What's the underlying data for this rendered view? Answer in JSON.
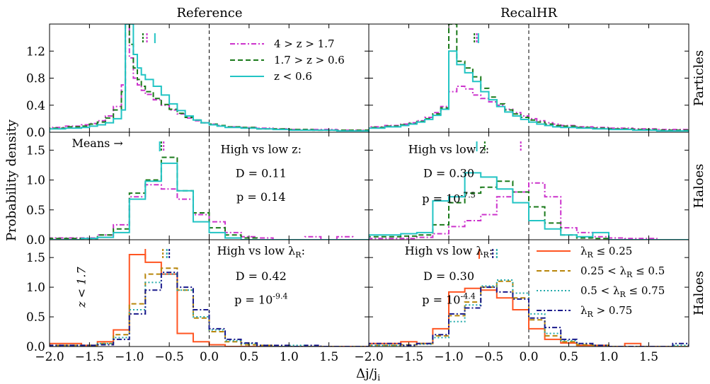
{
  "figure": {
    "column_titles": [
      "Reference",
      "RecalHR"
    ],
    "row_labels": [
      "Particles",
      "Haloes",
      "Haloes"
    ],
    "ylabel": "Probability density",
    "xlabel": "Δj/j",
    "xlabel_sub": "i"
  },
  "chart_data": [
    {
      "type": "histogram",
      "row": 0,
      "col": 0,
      "title": "Reference",
      "side_label": "",
      "xlim": [
        -2.0,
        2.0
      ],
      "ylim": [
        0,
        1.6
      ],
      "yticks": [
        "0.0",
        "0.4",
        "0.8",
        "1.2"
      ],
      "bin_edges": [
        -2.0,
        -1.8,
        -1.6,
        -1.5,
        -1.4,
        -1.3,
        -1.2,
        -1.1,
        -1.05,
        -1.0,
        -0.95,
        -0.9,
        -0.85,
        -0.8,
        -0.7,
        -0.6,
        -0.5,
        -0.4,
        -0.3,
        -0.2,
        -0.1,
        0.0,
        0.1,
        0.2,
        0.4,
        0.6,
        0.8,
        1.0,
        1.3,
        1.6,
        2.0
      ],
      "series": [
        {
          "name": "4 > z > 1.7",
          "color": "#cc33cc",
          "dash": "dashdot",
          "values": [
            0.07,
            0.09,
            0.11,
            0.13,
            0.17,
            0.24,
            0.38,
            0.7,
            1.6,
            1.1,
            0.8,
            0.7,
            0.62,
            0.56,
            0.48,
            0.4,
            0.33,
            0.27,
            0.21,
            0.17,
            0.14,
            0.12,
            0.1,
            0.08,
            0.07,
            0.06,
            0.05,
            0.04,
            0.04,
            0.03
          ]
        },
        {
          "name": "1.7 > z > 0.6",
          "color": "#1a7a1a",
          "dash": "dashed",
          "values": [
            0.06,
            0.08,
            0.09,
            0.12,
            0.15,
            0.21,
            0.33,
            0.6,
            1.6,
            1.3,
            0.95,
            0.78,
            0.68,
            0.6,
            0.5,
            0.41,
            0.34,
            0.28,
            0.22,
            0.18,
            0.14,
            0.12,
            0.1,
            0.08,
            0.07,
            0.05,
            0.05,
            0.04,
            0.03,
            0.03
          ]
        },
        {
          "name": "z < 0.6",
          "color": "#22c4c4",
          "dash": "solid",
          "values": [
            0.05,
            0.06,
            0.07,
            0.09,
            0.11,
            0.14,
            0.2,
            0.33,
            1.6,
            1.6,
            1.15,
            0.95,
            0.85,
            0.78,
            0.68,
            0.55,
            0.42,
            0.32,
            0.24,
            0.18,
            0.14,
            0.11,
            0.09,
            0.07,
            0.06,
            0.05,
            0.04,
            0.03,
            0.03,
            0.02
          ]
        }
      ],
      "means": [
        -0.78,
        -0.83,
        -0.68
      ],
      "annotations": []
    },
    {
      "type": "histogram",
      "row": 0,
      "col": 1,
      "title": "RecalHR",
      "side_label": "Particles",
      "xlim": [
        -2.0,
        2.0
      ],
      "ylim": [
        0,
        1.6
      ],
      "yticks": [],
      "bin_edges": [
        -2.0,
        -1.8,
        -1.6,
        -1.5,
        -1.4,
        -1.3,
        -1.2,
        -1.1,
        -1.0,
        -0.9,
        -0.8,
        -0.7,
        -0.6,
        -0.5,
        -0.4,
        -0.3,
        -0.2,
        -0.1,
        0.0,
        0.1,
        0.2,
        0.3,
        0.4,
        0.6,
        0.8,
        1.0,
        1.3,
        1.6,
        2.0
      ],
      "series": [
        {
          "name": "4 > z > 1.7",
          "color": "#cc33cc",
          "dash": "dashdot",
          "values": [
            0.08,
            0.1,
            0.12,
            0.14,
            0.17,
            0.22,
            0.29,
            0.38,
            0.6,
            0.68,
            0.64,
            0.55,
            0.5,
            0.45,
            0.4,
            0.34,
            0.29,
            0.24,
            0.2,
            0.17,
            0.14,
            0.12,
            0.1,
            0.08,
            0.07,
            0.06,
            0.05,
            0.04
          ]
        },
        {
          "name": "1.7 > z > 0.6",
          "color": "#1a7a1a",
          "dash": "dashed",
          "values": [
            0.07,
            0.09,
            0.11,
            0.13,
            0.16,
            0.2,
            0.27,
            0.36,
            1.6,
            1.05,
            0.95,
            0.82,
            0.65,
            0.52,
            0.42,
            0.33,
            0.27,
            0.22,
            0.18,
            0.15,
            0.12,
            0.1,
            0.09,
            0.07,
            0.06,
            0.05,
            0.04,
            0.03
          ]
        },
        {
          "name": "z < 0.6",
          "color": "#22c4c4",
          "dash": "solid",
          "values": [
            0.06,
            0.08,
            0.1,
            0.12,
            0.15,
            0.19,
            0.25,
            0.34,
            1.2,
            1.0,
            0.88,
            0.75,
            0.6,
            0.48,
            0.38,
            0.3,
            0.24,
            0.19,
            0.15,
            0.12,
            0.1,
            0.08,
            0.07,
            0.06,
            0.05,
            0.04,
            0.03,
            0.02
          ]
        }
      ],
      "means": [
        -0.65,
        -0.68,
        -0.63
      ],
      "annotations": []
    },
    {
      "type": "histogram",
      "row": 1,
      "col": 0,
      "title": "",
      "side_label": "",
      "xlim": [
        -2.0,
        2.0
      ],
      "ylim": [
        0,
        1.8
      ],
      "yticks": [
        "0.0",
        "0.5",
        "1.0",
        "1.5"
      ],
      "bin_edges": [
        -2.0,
        -1.6,
        -1.4,
        -1.2,
        -1.0,
        -0.8,
        -0.6,
        -0.4,
        -0.2,
        0.0,
        0.2,
        0.4,
        0.6,
        0.8,
        1.0,
        1.2,
        1.4,
        1.6,
        1.8,
        2.0
      ],
      "series": [
        {
          "name": "4 > z > 1.7",
          "color": "#cc33cc",
          "dash": "dashdot",
          "values": [
            0.03,
            0.03,
            0.08,
            0.25,
            0.72,
            0.92,
            0.85,
            0.68,
            0.42,
            0.3,
            0.12,
            0.05,
            0.03,
            0.0,
            0.0,
            0.05,
            0.0,
            0.05,
            0.0
          ]
        },
        {
          "name": "1.7 > z > 0.6",
          "color": "#1a7a1a",
          "dash": "dashed",
          "values": [
            0.02,
            0.02,
            0.08,
            0.18,
            0.78,
            1.0,
            1.38,
            0.82,
            0.45,
            0.2,
            0.08,
            0.03,
            0.0,
            0.0,
            0.0,
            0.0,
            0.0,
            0.0,
            0.0
          ]
        },
        {
          "name": "z < 0.6",
          "color": "#22c4c4",
          "dash": "solid",
          "values": [
            0.0,
            0.02,
            0.04,
            0.12,
            0.68,
            0.98,
            1.28,
            0.82,
            0.3,
            0.12,
            0.03,
            0.0,
            0.0,
            0.0,
            0.0,
            0.0,
            0.0,
            0.0,
            0.0
          ]
        }
      ],
      "means": [
        -0.57,
        -0.6,
        -0.62
      ],
      "annotations": [
        {
          "text": "Means →",
          "x": -1.4,
          "y": 1.55
        },
        {
          "text": "High vs low z:",
          "x": 0.65,
          "y": 1.45
        },
        {
          "text": "D = 0.11",
          "x": 0.65,
          "y": 1.05
        },
        {
          "text": "p = 0.14",
          "x": 0.65,
          "y": 0.65
        }
      ]
    },
    {
      "type": "histogram",
      "row": 1,
      "col": 1,
      "title": "",
      "side_label": "Haloes",
      "xlim": [
        -2.0,
        2.0
      ],
      "ylim": [
        0,
        1.8
      ],
      "yticks": [],
      "bin_edges": [
        -2.0,
        -1.6,
        -1.4,
        -1.2,
        -1.0,
        -0.8,
        -0.6,
        -0.4,
        -0.2,
        0.0,
        0.2,
        0.4,
        0.6,
        0.8,
        1.0,
        1.2,
        1.4,
        1.6,
        1.8,
        2.0
      ],
      "series": [
        {
          "name": "4 > z > 1.7",
          "color": "#cc33cc",
          "dash": "dashdot",
          "values": [
            0.02,
            0.02,
            0.04,
            0.1,
            0.22,
            0.32,
            0.42,
            0.72,
            0.8,
            0.95,
            0.72,
            0.2,
            0.12,
            0.05,
            0.03,
            0.02,
            0.02,
            0.0,
            0.0
          ]
        },
        {
          "name": "1.7 > z > 0.6",
          "color": "#1a7a1a",
          "dash": "dashed",
          "values": [
            0.05,
            0.06,
            0.08,
            0.25,
            0.62,
            0.78,
            0.88,
            0.98,
            0.8,
            0.55,
            0.28,
            0.08,
            0.03,
            0.02,
            0.0,
            0.0,
            0.0,
            0.0,
            0.0
          ]
        },
        {
          "name": "z < 0.6",
          "color": "#22c4c4",
          "dash": "solid",
          "values": [
            0.08,
            0.1,
            0.12,
            0.65,
            0.72,
            1.12,
            1.05,
            0.85,
            0.62,
            0.32,
            0.18,
            0.08,
            0.05,
            0.12,
            0.0,
            0.0,
            0.0,
            0.0,
            0.0
          ]
        }
      ],
      "means": [
        -0.1,
        -0.55,
        -0.65
      ],
      "annotations": [
        {
          "text": "High vs low z:",
          "x": -1.0,
          "y": 1.45
        },
        {
          "text": "D = 0.30",
          "x": -1.0,
          "y": 1.05
        },
        {
          "text": "p = 10",
          "sup": "-7.5",
          "x": -1.0,
          "y": 0.62
        }
      ]
    },
    {
      "type": "histogram",
      "row": 2,
      "col": 0,
      "title": "",
      "side_label": "",
      "xlim": [
        -2.0,
        2.0
      ],
      "ylim": [
        0,
        1.8
      ],
      "yticks": [
        "0.0",
        "0.5",
        "1.0",
        "1.5"
      ],
      "bin_edges": [
        -2.0,
        -1.6,
        -1.4,
        -1.2,
        -1.0,
        -0.8,
        -0.6,
        -0.4,
        -0.2,
        0.0,
        0.2,
        0.4,
        0.6,
        0.8,
        1.0,
        1.2,
        1.4,
        1.6,
        1.8,
        2.0
      ],
      "series": [
        {
          "name": "λR ≤ 0.25",
          "color": "#ff5522",
          "dash": "solid",
          "values": [
            0.05,
            0.02,
            0.08,
            0.28,
            1.55,
            1.42,
            1.22,
            0.22,
            0.08,
            0.03,
            0.0,
            0.0,
            0.0,
            0.0,
            0.0,
            0.0,
            0.0,
            0.0,
            0.0
          ]
        },
        {
          "name": "0.25 < λR ≤ 0.5",
          "color": "#b8860b",
          "dash": "dashed",
          "values": [
            0.02,
            0.02,
            0.05,
            0.2,
            0.72,
            1.22,
            1.32,
            0.95,
            0.48,
            0.25,
            0.08,
            0.03,
            0.02,
            0.0,
            0.0,
            0.0,
            0.0,
            0.0,
            0.0
          ]
        },
        {
          "name": "0.5 < λR ≤ 0.75",
          "color": "#22aaaa",
          "dash": "dotted",
          "values": [
            0.02,
            0.02,
            0.05,
            0.15,
            0.62,
            1.08,
            1.22,
            0.95,
            0.5,
            0.28,
            0.1,
            0.05,
            0.02,
            0.0,
            0.02,
            0.0,
            0.0,
            0.0,
            0.0
          ]
        },
        {
          "name": "λR > 0.75",
          "color": "#1a1a8c",
          "dash": "dashdot",
          "values": [
            0.02,
            0.02,
            0.03,
            0.12,
            0.55,
            0.95,
            1.25,
            1.0,
            0.62,
            0.3,
            0.12,
            0.06,
            0.02,
            0.02,
            0.0,
            0.02,
            0.0,
            0.0,
            0.0
          ]
        }
      ],
      "means": [
        -0.8,
        -0.58,
        -0.53,
        -0.5
      ],
      "annotations": [
        {
          "text": "High vs low λR:",
          "x": 0.65,
          "y": 1.55
        },
        {
          "text": "D = 0.42",
          "x": 0.65,
          "y": 1.12
        },
        {
          "text": "p = 10",
          "sup": "-9.4",
          "x": 0.65,
          "y": 0.72
        },
        {
          "text": "z < 1.7",
          "x": -1.55,
          "y": 1.0,
          "rotate": true
        }
      ]
    },
    {
      "type": "histogram",
      "row": 2,
      "col": 1,
      "title": "",
      "side_label": "Haloes",
      "xlim": [
        -2.0,
        2.0
      ],
      "ylim": [
        0,
        1.8
      ],
      "yticks": [],
      "bin_edges": [
        -2.0,
        -1.6,
        -1.4,
        -1.2,
        -1.0,
        -0.8,
        -0.6,
        -0.4,
        -0.2,
        0.0,
        0.2,
        0.4,
        0.6,
        0.8,
        1.0,
        1.2,
        1.4,
        1.6,
        1.8,
        2.0
      ],
      "series": [
        {
          "name": "λR ≤ 0.25",
          "color": "#ff5522",
          "dash": "solid",
          "values": [
            0.05,
            0.08,
            0.05,
            0.3,
            0.92,
            0.98,
            0.95,
            0.82,
            0.62,
            0.3,
            0.12,
            0.06,
            0.02,
            0.02,
            0.0,
            0.05,
            0.0,
            0.0,
            0.0
          ]
        },
        {
          "name": "0.25 < λR ≤ 0.5",
          "color": "#b8860b",
          "dash": "dashed",
          "values": [
            0.02,
            0.03,
            0.05,
            0.18,
            0.52,
            0.75,
            1.0,
            1.1,
            0.82,
            0.45,
            0.18,
            0.08,
            0.03,
            0.02,
            0.0,
            0.0,
            0.0,
            0.0,
            0.0
          ]
        },
        {
          "name": "0.5 < λR ≤ 0.75",
          "color": "#22aaaa",
          "dash": "dotted",
          "values": [
            0.02,
            0.02,
            0.04,
            0.15,
            0.42,
            0.7,
            1.02,
            1.12,
            0.9,
            0.55,
            0.22,
            0.1,
            0.05,
            0.02,
            0.0,
            0.0,
            0.0,
            0.0,
            0.02
          ]
        },
        {
          "name": "λR > 0.75",
          "color": "#1a1a8c",
          "dash": "dashdot",
          "values": [
            0.05,
            0.02,
            0.05,
            0.2,
            0.55,
            0.65,
            1.0,
            0.92,
            0.8,
            0.48,
            0.32,
            0.12,
            0.05,
            0.02,
            0.0,
            0.0,
            0.0,
            0.0,
            0.05
          ]
        }
      ],
      "means": [
        -0.62,
        -0.45,
        -0.4,
        -0.45
      ],
      "annotations": [
        {
          "text": "High vs low λR:",
          "x": -1.0,
          "y": 1.55
        },
        {
          "text": "D = 0.30",
          "x": -1.0,
          "y": 1.12
        },
        {
          "text": "p = 10",
          "sup": "-4.4",
          "x": -1.0,
          "y": 0.72
        }
      ]
    }
  ],
  "legends": [
    {
      "panel": 0,
      "entries": [
        {
          "text": "4 > z > 1.7",
          "color": "#cc33cc",
          "dash": "dashdot"
        },
        {
          "text": "1.7 > z > 0.6",
          "color": "#1a7a1a",
          "dash": "dashed"
        },
        {
          "text": "z < 0.6",
          "color": "#22c4c4",
          "dash": "solid"
        }
      ]
    },
    {
      "panel": 5,
      "entries": [
        {
          "text": "λR ≤ 0.25",
          "color": "#ff5522",
          "dash": "solid"
        },
        {
          "text": "0.25 < λR ≤ 0.5",
          "color": "#b8860b",
          "dash": "dashed"
        },
        {
          "text": "0.5 < λR ≤ 0.75",
          "color": "#22aaaa",
          "dash": "dotted"
        },
        {
          "text": "λR > 0.75",
          "color": "#1a1a8c",
          "dash": "dashdot"
        }
      ]
    }
  ],
  "xticks": [
    "−2.0",
    "−1.5",
    "−1.0",
    "−0.5",
    "0.0",
    "0.5",
    "1.0",
    "1.5"
  ]
}
